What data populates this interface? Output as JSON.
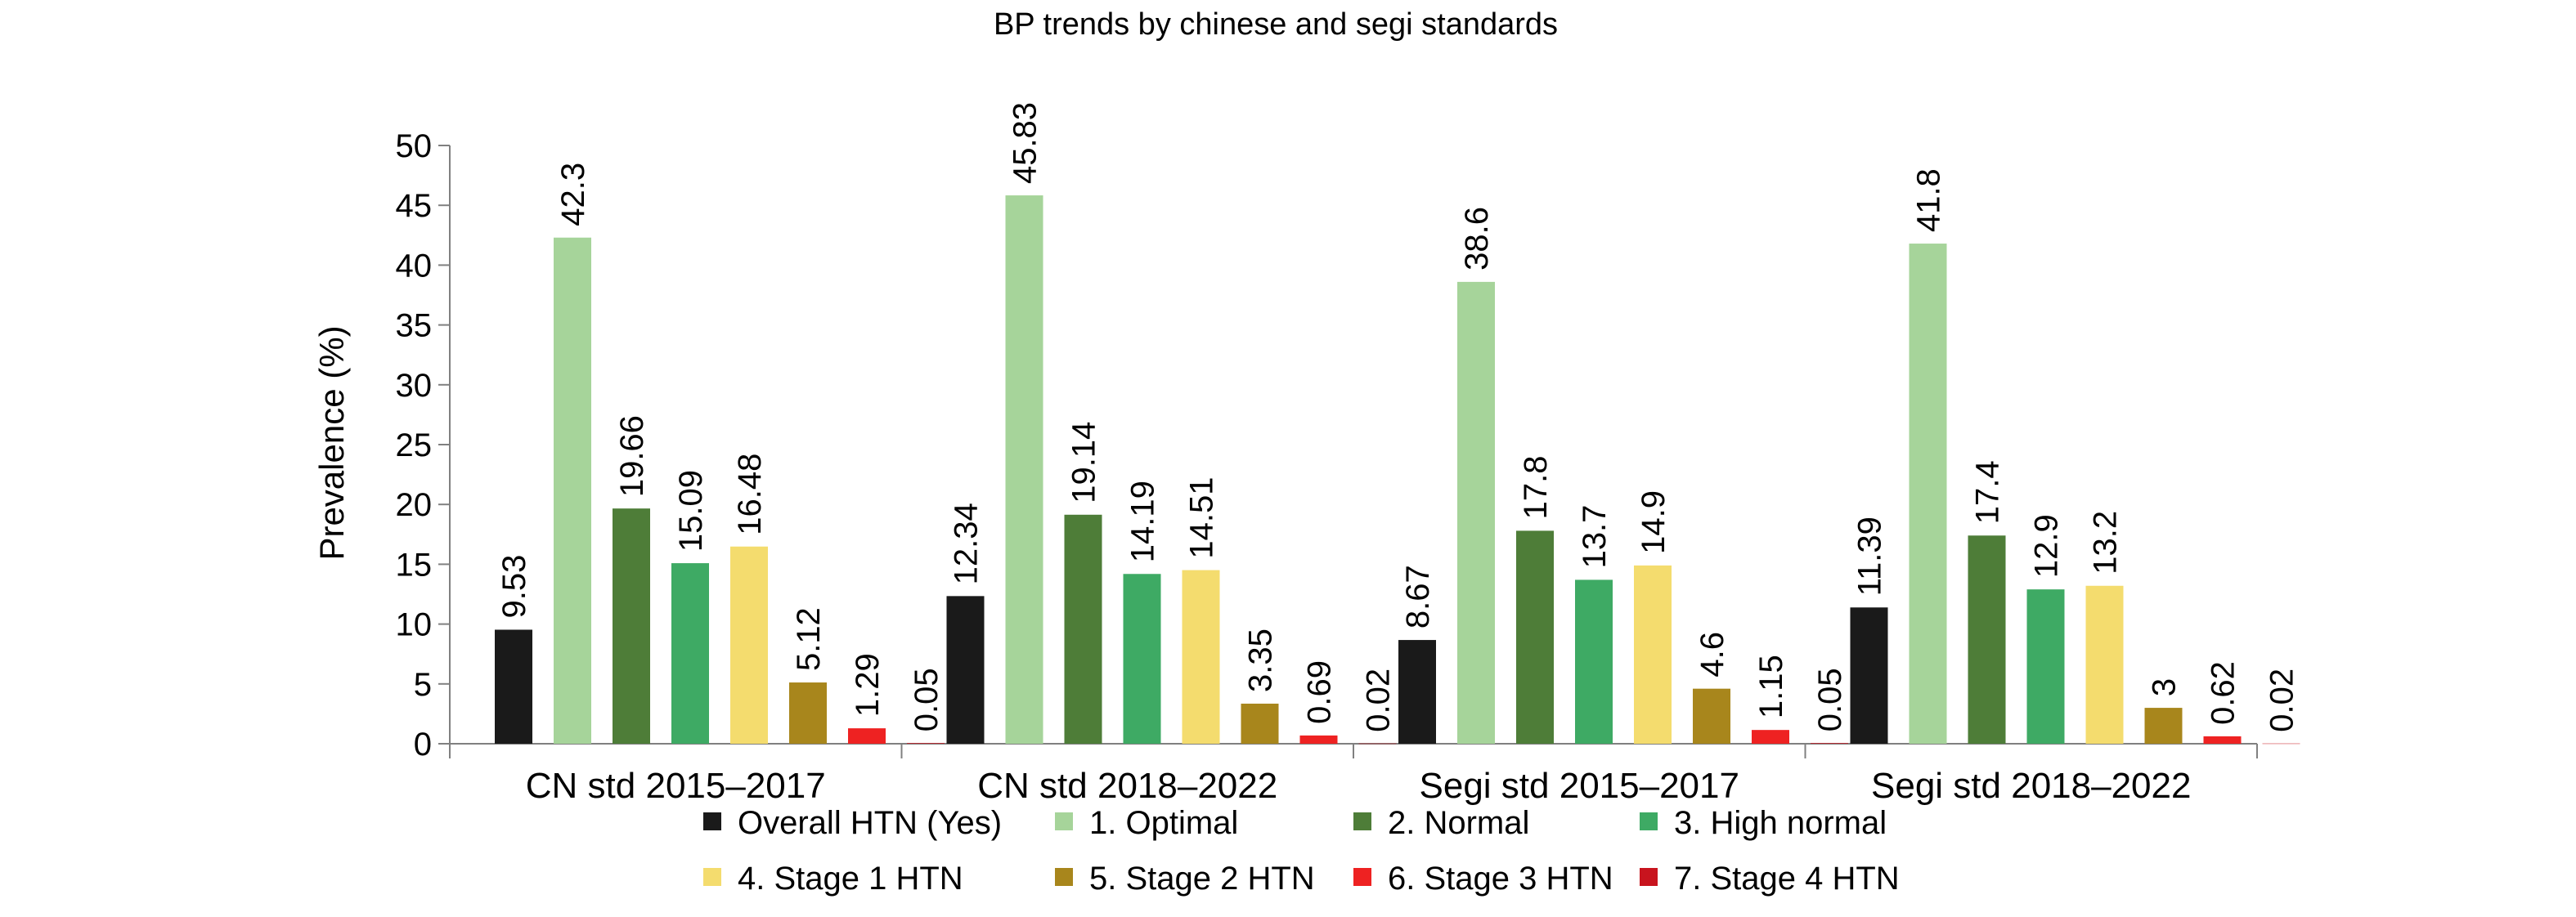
{
  "chart_data": {
    "type": "bar",
    "title": "BP trends by chinese and segi standards",
    "xlabel": "",
    "ylabel": "Prevalence (%)",
    "ylim": [
      0,
      50
    ],
    "yticks": [
      0,
      5,
      10,
      15,
      20,
      25,
      30,
      35,
      40,
      45,
      50
    ],
    "grid": false,
    "legend_position": "bottom",
    "categories": [
      "CN std 2015–2017",
      "CN std 2018–2022",
      "Segi std 2015–2017",
      "Segi std 2018–2022"
    ],
    "series": [
      {
        "name": "Overall HTN (Yes)",
        "color": "#1a1a1a",
        "values": [
          9.53,
          12.34,
          8.67,
          11.39
        ],
        "labels": [
          "9.53",
          "12.34",
          "8.67",
          "11.39"
        ]
      },
      {
        "name": "1. Optimal",
        "color": "#a6d49a",
        "values": [
          42.3,
          45.83,
          38.6,
          41.8
        ],
        "labels": [
          "42.3",
          "45.83",
          "38.6",
          "41.8"
        ]
      },
      {
        "name": "2. Normal",
        "color": "#4e7d38",
        "values": [
          19.66,
          19.14,
          17.8,
          17.4
        ],
        "labels": [
          "19.66",
          "19.14",
          "17.8",
          "17.4"
        ]
      },
      {
        "name": "3. High normal",
        "color": "#3eaa64",
        "values": [
          15.09,
          14.19,
          13.7,
          12.9
        ],
        "labels": [
          "15.09",
          "14.19",
          "13.7",
          "12.9"
        ]
      },
      {
        "name": "4. Stage 1 HTN",
        "color": "#f4dc6e",
        "values": [
          16.48,
          14.51,
          14.9,
          13.2
        ],
        "labels": [
          "16.48",
          "14.51",
          "14.9",
          "13.2"
        ]
      },
      {
        "name": "5. Stage 2 HTN",
        "color": "#a8861c",
        "values": [
          5.12,
          3.35,
          4.6,
          3
        ],
        "labels": [
          "5.12",
          "3.35",
          "4.6",
          "3"
        ]
      },
      {
        "name": "6. Stage 3 HTN",
        "color": "#ee2222",
        "values": [
          1.29,
          0.69,
          1.15,
          0.62
        ],
        "labels": [
          "1.29",
          "0.69",
          "1.15",
          "0.62"
        ]
      },
      {
        "name": "7. Stage 4 HTN",
        "color": "#c8141e",
        "values": [
          0.05,
          0.02,
          0.05,
          0.02
        ],
        "labels": [
          "0.05",
          "0.02",
          "0.05",
          "0.02"
        ]
      }
    ]
  }
}
